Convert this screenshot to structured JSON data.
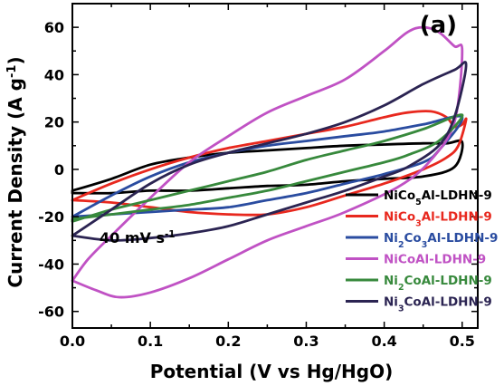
{
  "chart_data": {
    "type": "line",
    "panel_label": "(a)",
    "xlabel": "Potential (V vs Hg/HgO)",
    "ylabel": "Current Density (A g⁻¹)",
    "annotation": "40 mV s⁻¹",
    "xlim": [
      0.0,
      0.52
    ],
    "ylim": [
      -67,
      70
    ],
    "xticks": [
      0.0,
      0.1,
      0.2,
      0.3,
      0.4,
      0.5
    ],
    "yticks": [
      -60,
      -40,
      -20,
      0,
      20,
      40,
      60
    ],
    "xtick_labels": [
      "0.0",
      "0.1",
      "0.2",
      "0.3",
      "0.4",
      "0.5"
    ],
    "ytick_labels": [
      "-60",
      "-40",
      "-20",
      "0",
      "20",
      "40",
      "60"
    ],
    "grid": false,
    "legend_position": "bottom-right",
    "series": [
      {
        "name": "NiCo5Al-LDHN-9",
        "color": "#000000",
        "anodic": [
          [
            0.0,
            -9
          ],
          [
            0.05,
            -4
          ],
          [
            0.1,
            2
          ],
          [
            0.15,
            5
          ],
          [
            0.2,
            7
          ],
          [
            0.25,
            8
          ],
          [
            0.3,
            9
          ],
          [
            0.35,
            10
          ],
          [
            0.4,
            10.5
          ],
          [
            0.45,
            11
          ],
          [
            0.48,
            11
          ],
          [
            0.5,
            11.5
          ]
        ],
        "cathodic": [
          [
            0.5,
            11.5
          ],
          [
            0.49,
            1
          ],
          [
            0.45,
            -3
          ],
          [
            0.4,
            -4
          ],
          [
            0.35,
            -5
          ],
          [
            0.3,
            -6.5
          ],
          [
            0.25,
            -7
          ],
          [
            0.2,
            -8
          ],
          [
            0.15,
            -9
          ],
          [
            0.1,
            -9
          ],
          [
            0.05,
            -10
          ],
          [
            0.0,
            -10
          ]
        ]
      },
      {
        "name": "NiCo3Al-LDHN-9",
        "color": "#e8281e",
        "anodic": [
          [
            0.0,
            -13
          ],
          [
            0.05,
            -6
          ],
          [
            0.1,
            0
          ],
          [
            0.15,
            5
          ],
          [
            0.2,
            9
          ],
          [
            0.25,
            12
          ],
          [
            0.3,
            15
          ],
          [
            0.35,
            18
          ],
          [
            0.4,
            22
          ],
          [
            0.43,
            24
          ],
          [
            0.46,
            24.5
          ],
          [
            0.48,
            22
          ],
          [
            0.49,
            18
          ],
          [
            0.5,
            19
          ],
          [
            0.505,
            21
          ]
        ],
        "cathodic": [
          [
            0.505,
            21
          ],
          [
            0.495,
            10
          ],
          [
            0.48,
            5
          ],
          [
            0.45,
            0
          ],
          [
            0.4,
            -6
          ],
          [
            0.35,
            -11
          ],
          [
            0.3,
            -16
          ],
          [
            0.25,
            -19
          ],
          [
            0.2,
            -19
          ],
          [
            0.15,
            -18
          ],
          [
            0.1,
            -16
          ],
          [
            0.05,
            -14
          ],
          [
            0.0,
            -13
          ]
        ]
      },
      {
        "name": "Ni2Co3Al-LDHN-9",
        "color": "#2a4ca0",
        "anodic": [
          [
            0.0,
            -20
          ],
          [
            0.05,
            -11
          ],
          [
            0.1,
            -3
          ],
          [
            0.15,
            3
          ],
          [
            0.2,
            7
          ],
          [
            0.25,
            10
          ],
          [
            0.3,
            12
          ],
          [
            0.35,
            14
          ],
          [
            0.4,
            16
          ],
          [
            0.45,
            19
          ],
          [
            0.5,
            22
          ]
        ],
        "cathodic": [
          [
            0.5,
            22
          ],
          [
            0.47,
            8
          ],
          [
            0.45,
            3
          ],
          [
            0.4,
            -2
          ],
          [
            0.35,
            -6
          ],
          [
            0.3,
            -10
          ],
          [
            0.25,
            -13
          ],
          [
            0.2,
            -16
          ],
          [
            0.15,
            -17
          ],
          [
            0.1,
            -18
          ],
          [
            0.05,
            -19
          ],
          [
            0.0,
            -20
          ]
        ]
      },
      {
        "name": "NiCoAl-LDHN-9",
        "color": "#c052c4",
        "anodic": [
          [
            0.0,
            -47
          ],
          [
            0.02,
            -38
          ],
          [
            0.05,
            -28
          ],
          [
            0.1,
            -12
          ],
          [
            0.15,
            3
          ],
          [
            0.2,
            14
          ],
          [
            0.25,
            24
          ],
          [
            0.3,
            31
          ],
          [
            0.35,
            38
          ],
          [
            0.4,
            50
          ],
          [
            0.43,
            58
          ],
          [
            0.45,
            60
          ],
          [
            0.47,
            58
          ],
          [
            0.49,
            52
          ],
          [
            0.5,
            50
          ]
        ],
        "cathodic": [
          [
            0.5,
            50
          ],
          [
            0.49,
            20
          ],
          [
            0.46,
            4
          ],
          [
            0.42,
            -7
          ],
          [
            0.35,
            -18
          ],
          [
            0.3,
            -24
          ],
          [
            0.25,
            -30
          ],
          [
            0.2,
            -38
          ],
          [
            0.15,
            -46
          ],
          [
            0.1,
            -52
          ],
          [
            0.06,
            -54
          ],
          [
            0.03,
            -51
          ],
          [
            0.0,
            -47
          ]
        ]
      },
      {
        "name": "Ni2CoAl-LDHN-9",
        "color": "#37893c",
        "anodic": [
          [
            0.0,
            -22
          ],
          [
            0.05,
            -17
          ],
          [
            0.1,
            -13
          ],
          [
            0.15,
            -9
          ],
          [
            0.2,
            -5
          ],
          [
            0.25,
            -1
          ],
          [
            0.3,
            4
          ],
          [
            0.35,
            8
          ],
          [
            0.4,
            12
          ],
          [
            0.45,
            17
          ],
          [
            0.5,
            23
          ]
        ],
        "cathodic": [
          [
            0.5,
            23
          ],
          [
            0.47,
            12
          ],
          [
            0.43,
            6
          ],
          [
            0.4,
            3
          ],
          [
            0.35,
            -1
          ],
          [
            0.3,
            -5
          ],
          [
            0.25,
            -9
          ],
          [
            0.2,
            -12
          ],
          [
            0.15,
            -15
          ],
          [
            0.1,
            -17
          ],
          [
            0.05,
            -19
          ],
          [
            0.0,
            -21
          ]
        ]
      },
      {
        "name": "Ni3CoAl-LDHN-9",
        "color": "#2b2452",
        "anodic": [
          [
            0.0,
            -28
          ],
          [
            0.05,
            -17
          ],
          [
            0.1,
            -6
          ],
          [
            0.15,
            2
          ],
          [
            0.2,
            7
          ],
          [
            0.25,
            11
          ],
          [
            0.3,
            15
          ],
          [
            0.35,
            20
          ],
          [
            0.4,
            27
          ],
          [
            0.45,
            36
          ],
          [
            0.49,
            42
          ],
          [
            0.505,
            44
          ]
        ],
        "cathodic": [
          [
            0.505,
            44
          ],
          [
            0.49,
            22
          ],
          [
            0.47,
            10
          ],
          [
            0.43,
            1
          ],
          [
            0.4,
            -3
          ],
          [
            0.35,
            -9
          ],
          [
            0.3,
            -14
          ],
          [
            0.25,
            -19
          ],
          [
            0.2,
            -24
          ],
          [
            0.15,
            -27
          ],
          [
            0.1,
            -29
          ],
          [
            0.05,
            -30
          ],
          [
            0.0,
            -28
          ]
        ]
      }
    ]
  },
  "legend_labels": [
    [
      [
        "NiCo",
        ""
      ],
      [
        "5",
        "sub"
      ],
      [
        "Al-LDHN-9",
        ""
      ]
    ],
    [
      [
        "NiCo",
        ""
      ],
      [
        "3",
        "sub"
      ],
      [
        "Al-LDHN-9",
        ""
      ]
    ],
    [
      [
        "Ni",
        ""
      ],
      [
        "2",
        "sub"
      ],
      [
        "Co",
        ""
      ],
      [
        "3",
        "sub"
      ],
      [
        "Al-LDHN-9",
        ""
      ]
    ],
    [
      [
        "NiCoAl-LDHN-9",
        ""
      ]
    ],
    [
      [
        "Ni",
        ""
      ],
      [
        "2",
        "sub"
      ],
      [
        "CoAl-LDHN-9",
        ""
      ]
    ],
    [
      [
        "Ni",
        ""
      ],
      [
        "3",
        "sub"
      ],
      [
        "CoAl-LDHN-9",
        ""
      ]
    ]
  ],
  "ylabel_parts": [
    [
      "Current Density (A g",
      ""
    ],
    [
      "-1",
      "sup"
    ],
    [
      ")",
      ""
    ]
  ],
  "annotation_parts": [
    [
      "40 mV s",
      ""
    ],
    [
      "-1",
      "sup"
    ]
  ]
}
